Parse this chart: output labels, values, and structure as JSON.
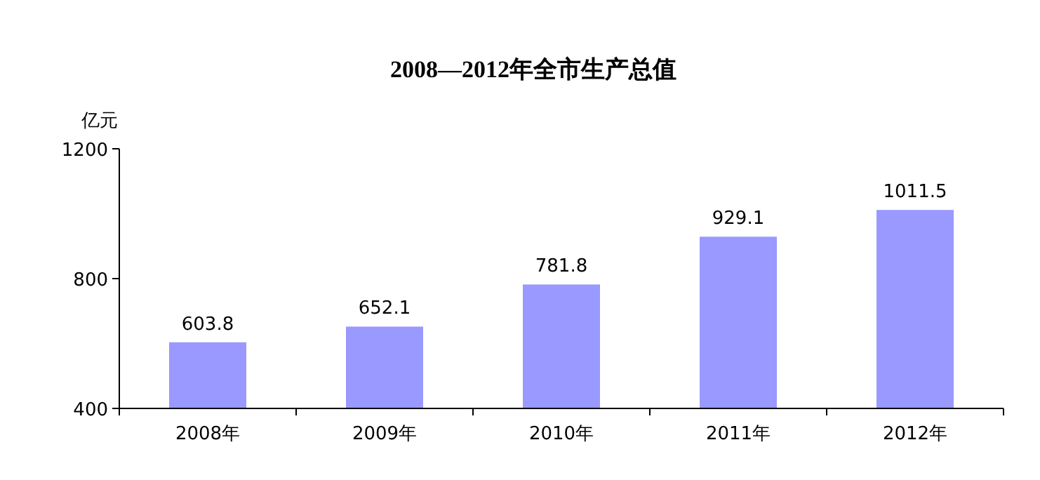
{
  "chart_data": {
    "type": "bar",
    "title": "2008—2012年全市生产总值",
    "ylabel": "亿元",
    "categories": [
      "2008年",
      "2009年",
      "2010年",
      "2011年",
      "2012年"
    ],
    "values": [
      603.8,
      652.1,
      781.8,
      929.1,
      1011.5
    ],
    "color": "#9999ff",
    "ylim": [
      400,
      1200
    ],
    "yticks": [
      400,
      800,
      1200
    ],
    "data_labels": true,
    "grid": false
  }
}
